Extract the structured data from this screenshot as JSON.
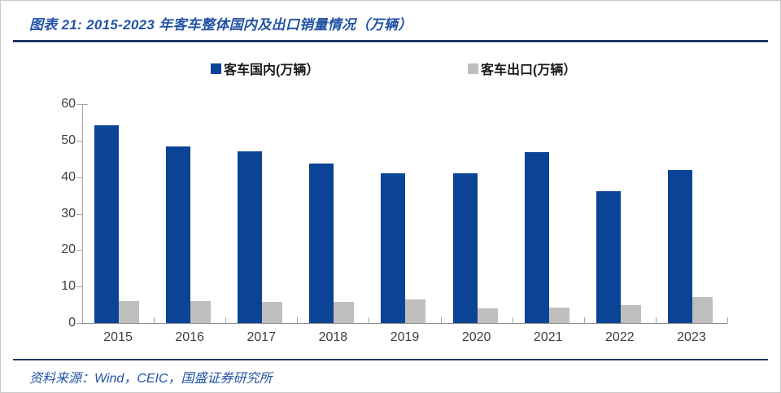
{
  "header": {
    "title": "图表 21: 2015-2023 年客车整体国内及出口销量情况（万辆）"
  },
  "chart_data": {
    "type": "bar",
    "categories": [
      "2015",
      "2016",
      "2017",
      "2018",
      "2019",
      "2020",
      "2021",
      "2022",
      "2023"
    ],
    "series": [
      {
        "name": "客车国内(万辆）",
        "color": "#0b4397",
        "values": [
          54.2,
          48.5,
          47.0,
          43.8,
          41.0,
          41.0,
          46.9,
          36.2,
          42.0
        ]
      },
      {
        "name": "客车出口(万辆）",
        "color": "#bfbfbf",
        "values": [
          6.1,
          6.0,
          5.8,
          5.9,
          6.5,
          4.1,
          4.2,
          4.9,
          7.1
        ]
      }
    ],
    "title": "2015-2023 年客车整体国内及出口销量情况（万辆）",
    "xlabel": "",
    "ylabel": "",
    "ylim": [
      0,
      60
    ],
    "ytick_step": 10,
    "legend_position": "top",
    "grid": false
  },
  "colors": {
    "title_text": "#2353a5",
    "rule": "#1f3864",
    "axis": "#a6a6a6"
  },
  "footer": {
    "source": "资料来源：Wind，CEIC，国盛证券研究所"
  }
}
